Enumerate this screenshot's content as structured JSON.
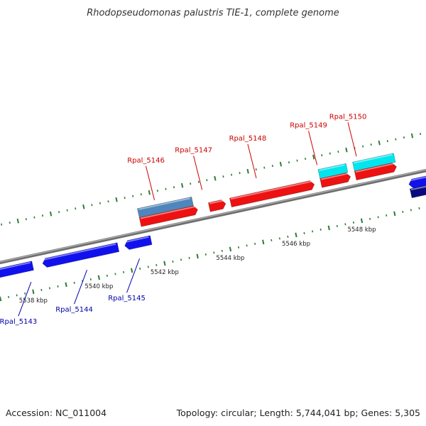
{
  "title": "Rhodopseudomonas palustris TIE-1, complete genome",
  "footer": {
    "accession": "Accession: NC_011004",
    "topology": "Topology: circular; Length: 5,744,041 bp; Genes: 5,305"
  },
  "colors": {
    "backbone": "#8c8c8c",
    "ticks": "#2e7d32",
    "forward_gene": "#ee1111",
    "forward_rna": "#00e5ee",
    "forward_other": "#4f86bb",
    "reverse_gene": "#1111ee",
    "reverse_other": "#0a0a80",
    "label_forward": "#cc0000",
    "label_reverse": "#0000aa"
  },
  "map": {
    "start_kbp": 5537.0,
    "end_kbp": 5550.4,
    "kbp_labels": [
      "5538 kbp",
      "5540 kbp",
      "5542 kbp",
      "5544 kbp",
      "5546 kbp",
      "5548 kbp"
    ],
    "kbp_label_values": [
      5538,
      5540,
      5542,
      5544,
      5546,
      5548
    ]
  },
  "genes": [
    {
      "id": "fwd-a",
      "strand": 1,
      "row": "outer",
      "start": 5541.55,
      "end": 5543.2,
      "kind": "other",
      "arrow": false
    },
    {
      "id": "fwd-b",
      "strand": 1,
      "row": "inner",
      "start": 5541.55,
      "end": 5543.3,
      "kind": "gene",
      "arrow": true
    },
    {
      "id": "fwd-c",
      "strand": 1,
      "row": "inner",
      "start": 5543.65,
      "end": 5544.15,
      "kind": "gene",
      "arrow": true
    },
    {
      "id": "fwd-d",
      "strand": 1,
      "row": "inner",
      "start": 5544.3,
      "end": 5546.85,
      "kind": "gene",
      "arrow": true
    },
    {
      "id": "fwd-e",
      "strand": 1,
      "row": "outer",
      "start": 5547.05,
      "end": 5547.9,
      "kind": "rna",
      "arrow": false
    },
    {
      "id": "fwd-f",
      "strand": 1,
      "row": "inner",
      "start": 5547.05,
      "end": 5547.95,
      "kind": "gene",
      "arrow": true
    },
    {
      "id": "fwd-g",
      "strand": 1,
      "row": "outer",
      "start": 5548.1,
      "end": 5549.35,
      "kind": "rna",
      "arrow": false
    },
    {
      "id": "fwd-h",
      "strand": 1,
      "row": "inner",
      "start": 5548.1,
      "end": 5549.35,
      "kind": "gene",
      "arrow": true
    },
    {
      "id": "rev-a",
      "strand": -1,
      "row": "inner",
      "start": 5536.9,
      "end": 5538.15,
      "kind": "gene",
      "arrow": true
    },
    {
      "id": "rev-b",
      "strand": -1,
      "row": "inner",
      "start": 5538.45,
      "end": 5540.75,
      "kind": "gene",
      "arrow": true
    },
    {
      "id": "rev-c",
      "strand": -1,
      "row": "inner",
      "start": 5540.95,
      "end": 5541.75,
      "kind": "gene",
      "arrow": true
    },
    {
      "id": "rev-d",
      "strand": -1,
      "row": "inner",
      "start": 5549.6,
      "end": 5550.6,
      "kind": "gene",
      "arrow": true
    },
    {
      "id": "rev-e",
      "strand": -1,
      "row": "outer",
      "start": 5549.6,
      "end": 5550.6,
      "kind": "other",
      "arrow": false
    }
  ],
  "labels": [
    {
      "text": "Rpal_5146",
      "strand": 1,
      "pos": 5542.1
    },
    {
      "text": "Rpal_5147",
      "strand": 1,
      "pos": 5543.55
    },
    {
      "text": "Rpal_5148",
      "strand": 1,
      "pos": 5545.2
    },
    {
      "text": "Rpal_5149",
      "strand": 1,
      "pos": 5547.05
    },
    {
      "text": "Rpal_5150",
      "strand": 1,
      "pos": 5548.25
    },
    {
      "text": "Rpal_5143",
      "strand": -1,
      "pos": 5538.0
    },
    {
      "text": "Rpal_5144",
      "strand": -1,
      "pos": 5539.7
    },
    {
      "text": "Rpal_5145",
      "strand": -1,
      "pos": 5541.3
    }
  ]
}
